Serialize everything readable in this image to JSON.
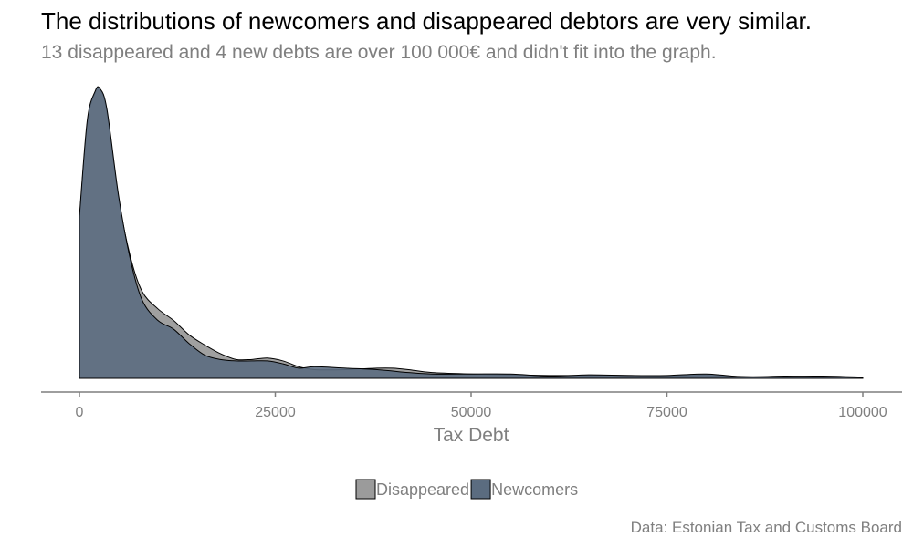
{
  "chart_data": {
    "type": "area",
    "title": "The distributions of newcomers and disappeared debtors are very similar.",
    "subtitle": "13 disappeared and 4 new debts are over 100 000€ and didn't fit into the graph.",
    "caption": "Data: Estonian Tax and Customs Board",
    "xlabel": "Tax Debt",
    "ylabel": "",
    "xlim": [
      0,
      100000
    ],
    "ylim": [
      0,
      1
    ],
    "x_ticks": [
      "0",
      "25000",
      "50000",
      "75000",
      "100000"
    ],
    "y_axis_visible": false,
    "grid": false,
    "legend_position": "bottom",
    "series": [
      {
        "name": "Disappeared",
        "color": "#9b9b9b",
        "x": [
          0,
          1000,
          2000,
          2600,
          3500,
          5000,
          6500,
          8000,
          10000,
          12000,
          14000,
          16000,
          18000,
          20000,
          22000,
          24000,
          26000,
          28000,
          30000,
          34000,
          38000,
          40000,
          42000,
          45000,
          50000,
          55000,
          60000,
          65000,
          70000,
          75000,
          80000,
          85000,
          90000,
          95000,
          100000
        ],
        "y": [
          0.55,
          0.88,
          0.985,
          1.0,
          0.92,
          0.62,
          0.42,
          0.3,
          0.24,
          0.2,
          0.15,
          0.115,
          0.085,
          0.065,
          0.065,
          0.07,
          0.06,
          0.04,
          0.03,
          0.03,
          0.035,
          0.035,
          0.03,
          0.02,
          0.015,
          0.012,
          0.01,
          0.01,
          0.01,
          0.008,
          0.01,
          0.006,
          0.006,
          0.008,
          0.004
        ]
      },
      {
        "name": "Newcomers",
        "color": "#5b6c80",
        "x": [
          0,
          1000,
          2000,
          2600,
          3500,
          5000,
          6500,
          8000,
          10000,
          12000,
          14000,
          16000,
          18000,
          20000,
          22000,
          24000,
          26000,
          28000,
          30000,
          34000,
          38000,
          40000,
          42000,
          45000,
          50000,
          55000,
          60000,
          65000,
          70000,
          75000,
          80000,
          85000,
          90000,
          95000,
          100000
        ],
        "y": [
          0.56,
          0.89,
          0.99,
          1.0,
          0.93,
          0.63,
          0.41,
          0.27,
          0.2,
          0.17,
          0.12,
          0.08,
          0.065,
          0.06,
          0.06,
          0.06,
          0.05,
          0.035,
          0.04,
          0.035,
          0.03,
          0.025,
          0.02,
          0.015,
          0.015,
          0.015,
          0.008,
          0.012,
          0.01,
          0.01,
          0.015,
          0.005,
          0.008,
          0.006,
          0.003
        ]
      }
    ]
  }
}
